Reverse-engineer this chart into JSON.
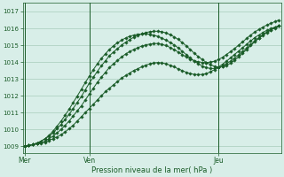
{
  "bg_color": "#d8eee8",
  "grid_color": "#a8ccbb",
  "line_color": "#1a5c28",
  "marker_color": "#1a5c28",
  "axis_color": "#1a5c28",
  "ylabel_ticks": [
    1009,
    1010,
    1011,
    1012,
    1013,
    1014,
    1015,
    1016,
    1017
  ],
  "ylim": [
    1008.6,
    1017.5
  ],
  "xlim": [
    -0.5,
    63.5
  ],
  "xlabel": "Pression niveau de la mer( hPa )",
  "day_labels": [
    "Mer",
    "Ven",
    "Jeu"
  ],
  "day_positions": [
    0,
    16,
    48
  ],
  "total_points": 64,
  "series1_x": [
    0,
    1,
    2,
    3,
    4,
    5,
    6,
    7,
    8,
    9,
    10,
    11,
    12,
    13,
    14,
    15,
    16,
    17,
    18,
    19,
    20,
    21,
    22,
    23,
    24,
    25,
    26,
    27,
    28,
    29,
    30,
    31,
    32,
    33,
    34,
    35,
    36,
    37,
    38,
    39,
    40,
    41,
    42,
    43,
    44,
    45,
    46,
    47,
    48,
    49,
    50,
    51,
    52,
    53,
    54,
    55,
    56,
    57,
    58,
    59,
    60,
    61,
    62,
    63
  ],
  "series1_y": [
    1009.0,
    1009.05,
    1009.1,
    1009.15,
    1009.2,
    1009.25,
    1009.35,
    1009.45,
    1009.55,
    1009.7,
    1009.85,
    1010.05,
    1010.25,
    1010.5,
    1010.75,
    1011.0,
    1011.25,
    1011.5,
    1011.75,
    1012.0,
    1012.25,
    1012.45,
    1012.65,
    1012.85,
    1013.05,
    1013.2,
    1013.35,
    1013.5,
    1013.6,
    1013.72,
    1013.82,
    1013.9,
    1013.95,
    1013.97,
    1013.95,
    1013.9,
    1013.82,
    1013.72,
    1013.6,
    1013.5,
    1013.4,
    1013.32,
    1013.27,
    1013.25,
    1013.27,
    1013.32,
    1013.42,
    1013.55,
    1013.7,
    1013.87,
    1014.05,
    1014.25,
    1014.45,
    1014.65,
    1014.85,
    1015.05,
    1015.25,
    1015.45,
    1015.6,
    1015.75,
    1015.88,
    1015.98,
    1016.08,
    1016.15
  ],
  "series2_x": [
    0,
    1,
    2,
    3,
    4,
    5,
    6,
    7,
    8,
    9,
    10,
    11,
    12,
    13,
    14,
    15,
    16,
    17,
    18,
    19,
    20,
    21,
    22,
    23,
    24,
    25,
    26,
    27,
    28,
    29,
    30,
    31,
    32,
    33,
    34,
    35,
    36,
    37,
    38,
    39,
    40,
    41,
    42,
    43,
    44,
    45,
    46,
    47,
    48,
    49,
    50,
    51,
    52,
    53,
    54,
    55,
    56,
    57,
    58,
    59,
    60,
    61,
    62,
    63
  ],
  "series2_y": [
    1009.0,
    1009.05,
    1009.1,
    1009.15,
    1009.22,
    1009.3,
    1009.45,
    1009.6,
    1009.8,
    1010.0,
    1010.25,
    1010.5,
    1010.8,
    1011.1,
    1011.4,
    1011.75,
    1012.1,
    1012.45,
    1012.8,
    1013.1,
    1013.4,
    1013.68,
    1013.9,
    1014.1,
    1014.3,
    1014.48,
    1014.62,
    1014.75,
    1014.85,
    1014.95,
    1015.02,
    1015.07,
    1015.1,
    1015.1,
    1015.05,
    1014.98,
    1014.87,
    1014.75,
    1014.6,
    1014.45,
    1014.3,
    1014.18,
    1014.08,
    1014.02,
    1013.98,
    1013.97,
    1014.0,
    1014.05,
    1014.15,
    1014.28,
    1014.45,
    1014.62,
    1014.8,
    1015.0,
    1015.2,
    1015.4,
    1015.6,
    1015.78,
    1015.93,
    1016.07,
    1016.2,
    1016.3,
    1016.4,
    1016.5
  ],
  "series3_x": [
    0,
    1,
    2,
    3,
    4,
    5,
    6,
    7,
    8,
    9,
    10,
    11,
    12,
    13,
    14,
    15,
    16,
    17,
    18,
    19,
    20,
    21,
    22,
    23,
    24,
    25,
    26,
    27,
    28,
    29,
    30,
    31,
    32,
    33,
    34,
    35,
    36,
    37,
    38,
    39,
    40,
    41,
    42,
    43,
    44,
    45,
    46,
    47,
    48,
    49,
    50,
    51,
    52,
    53,
    54,
    55,
    56,
    57,
    58,
    59,
    60,
    61,
    62,
    63
  ],
  "series3_y": [
    1009.0,
    1009.05,
    1009.1,
    1009.2,
    1009.3,
    1009.45,
    1009.6,
    1009.8,
    1010.05,
    1010.3,
    1010.6,
    1010.9,
    1011.25,
    1011.6,
    1011.95,
    1012.35,
    1012.75,
    1013.1,
    1013.45,
    1013.78,
    1014.08,
    1014.38,
    1014.6,
    1014.8,
    1015.0,
    1015.18,
    1015.33,
    1015.47,
    1015.58,
    1015.67,
    1015.75,
    1015.8,
    1015.83,
    1015.83,
    1015.8,
    1015.73,
    1015.63,
    1015.5,
    1015.35,
    1015.17,
    1014.97,
    1014.75,
    1014.53,
    1014.33,
    1014.15,
    1013.98,
    1013.85,
    1013.75,
    1013.7,
    1013.72,
    1013.8,
    1013.93,
    1014.1,
    1014.3,
    1014.52,
    1014.75,
    1014.98,
    1015.2,
    1015.4,
    1015.58,
    1015.75,
    1015.9,
    1016.02,
    1016.15
  ],
  "series4_x": [
    0,
    1,
    2,
    3,
    4,
    5,
    6,
    7,
    8,
    9,
    10,
    11,
    12,
    13,
    14,
    15,
    16,
    17,
    18,
    19,
    20,
    21,
    22,
    23,
    24,
    25,
    26,
    27,
    28,
    29,
    30,
    31,
    32,
    33,
    34,
    35,
    36,
    37,
    38,
    39,
    40,
    41,
    42,
    43,
    44,
    45,
    46,
    47,
    48,
    49,
    50,
    51,
    52,
    53,
    54,
    55,
    56,
    57,
    58,
    59,
    60,
    61,
    62,
    63
  ],
  "series4_y": [
    1009.0,
    1009.05,
    1009.1,
    1009.2,
    1009.3,
    1009.45,
    1009.65,
    1009.9,
    1010.2,
    1010.5,
    1010.85,
    1011.2,
    1011.6,
    1011.98,
    1012.38,
    1012.78,
    1013.17,
    1013.55,
    1013.9,
    1014.22,
    1014.5,
    1014.75,
    1014.97,
    1015.15,
    1015.3,
    1015.43,
    1015.53,
    1015.6,
    1015.65,
    1015.67,
    1015.67,
    1015.65,
    1015.6,
    1015.52,
    1015.42,
    1015.3,
    1015.17,
    1015.02,
    1014.85,
    1014.65,
    1014.45,
    1014.25,
    1014.07,
    1013.9,
    1013.77,
    1013.67,
    1013.62,
    1013.62,
    1013.67,
    1013.77,
    1013.9,
    1014.05,
    1014.22,
    1014.42,
    1014.62,
    1014.83,
    1015.05,
    1015.25,
    1015.45,
    1015.62,
    1015.78,
    1015.92,
    1016.04,
    1016.15
  ]
}
